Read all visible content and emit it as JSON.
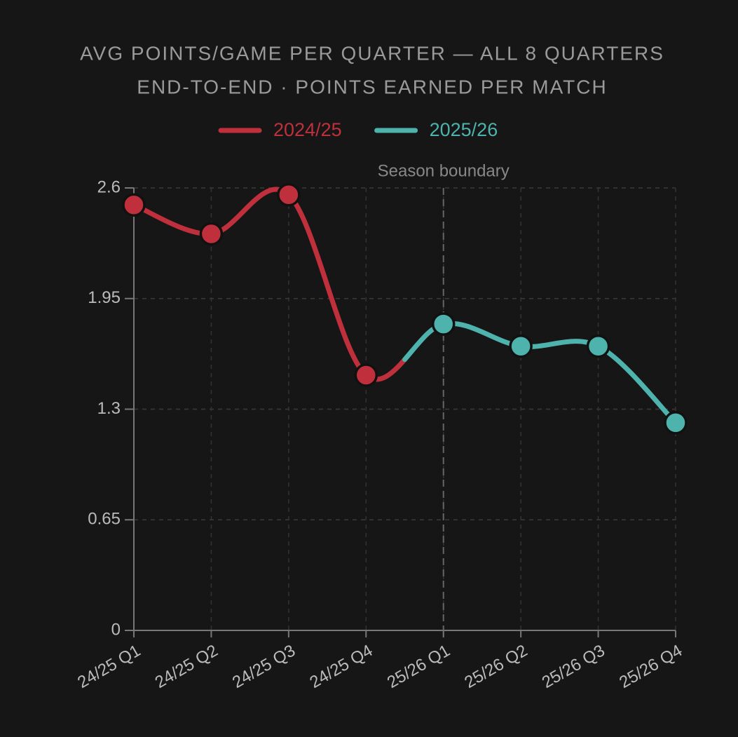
{
  "chart_data": {
    "type": "line",
    "title": "AVG POINTS/GAME PER QUARTER — ALL 8 QUARTERS",
    "subtitle": "END-TO-END · POINTS EARNED PER MATCH",
    "categories": [
      "24/25 Q1",
      "24/25 Q2",
      "24/25 Q3",
      "24/25 Q4",
      "25/26 Q1",
      "25/26 Q2",
      "25/26 Q3",
      "25/26 Q4"
    ],
    "series": [
      {
        "name": "2024/25",
        "color": "#c0303c",
        "values": [
          2.5,
          2.33,
          2.56,
          1.5,
          null,
          null,
          null,
          null
        ]
      },
      {
        "name": "2025/26",
        "color": "#4db3ac",
        "values": [
          null,
          null,
          null,
          null,
          1.8,
          1.67,
          1.67,
          1.22
        ]
      }
    ],
    "ylim": [
      0,
      2.6
    ],
    "yticks": [
      0,
      0.65,
      1.3,
      1.95,
      2.6
    ],
    "grid": true,
    "legend": "top",
    "annotation": {
      "text": "Season boundary",
      "x": "25/26 Q1"
    }
  }
}
